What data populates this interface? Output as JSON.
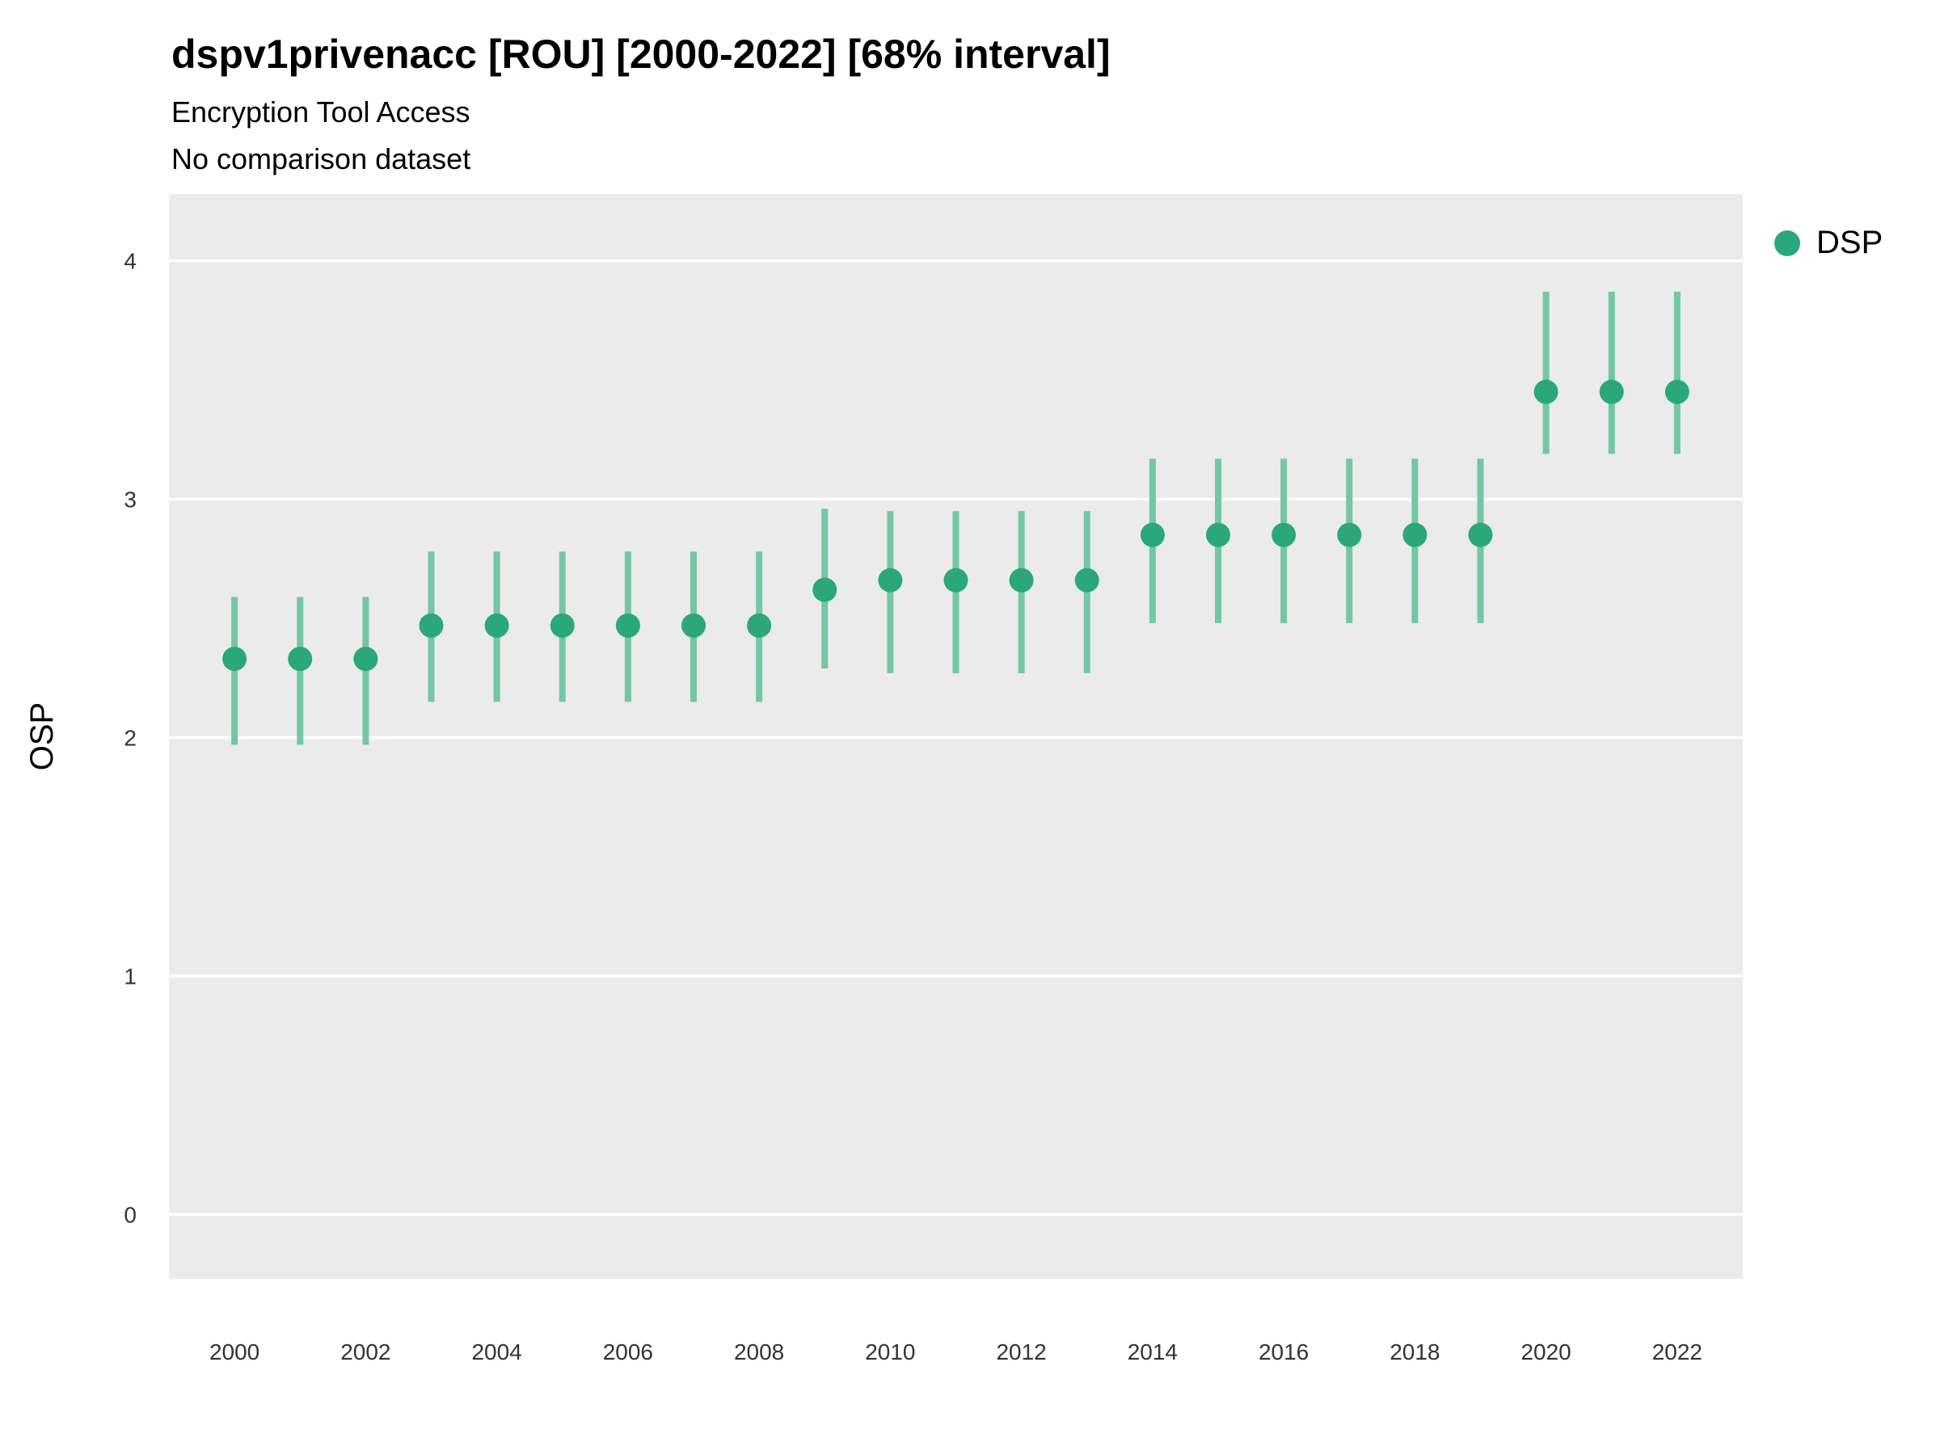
{
  "header": {
    "title": "dspv1privenacc [ROU] [2000-2022] [68% interval]",
    "subtitle": "Encryption Tool Access",
    "note": "No comparison dataset"
  },
  "legend": {
    "label": "DSP"
  },
  "axis": {
    "ylabel": "OSP"
  },
  "colors": {
    "point": "#2aa87b",
    "interval": "#74c6a4",
    "panel": "#ebebeb",
    "grid": "#ffffff",
    "tick": "#333333"
  },
  "chart_data": {
    "type": "scatter",
    "title": "dspv1privenacc [ROU] [2000-2022] [68% interval]",
    "subtitle": "Encryption Tool Access",
    "note": "No comparison dataset",
    "xlabel": "",
    "ylabel": "OSP",
    "legend_position": "right",
    "grid": "horizontal-major",
    "interval_label": "68% interval",
    "xlim": [
      1999,
      2023
    ],
    "ylim": [
      -0.27,
      4.28
    ],
    "xticks": [
      2000,
      2002,
      2004,
      2006,
      2008,
      2010,
      2012,
      2014,
      2016,
      2018,
      2020,
      2022
    ],
    "yticks": [
      0,
      1,
      2,
      3,
      4
    ],
    "series": [
      {
        "name": "DSP",
        "x": [
          2000,
          2001,
          2002,
          2003,
          2004,
          2005,
          2006,
          2007,
          2008,
          2009,
          2010,
          2011,
          2012,
          2013,
          2014,
          2015,
          2016,
          2017,
          2018,
          2019,
          2020,
          2021,
          2022
        ],
        "y": [
          2.33,
          2.33,
          2.33,
          2.47,
          2.47,
          2.47,
          2.47,
          2.47,
          2.47,
          2.62,
          2.66,
          2.66,
          2.66,
          2.66,
          2.85,
          2.85,
          2.85,
          2.85,
          2.85,
          2.85,
          3.45,
          3.45,
          3.45
        ],
        "lo": [
          1.97,
          1.97,
          1.97,
          2.15,
          2.15,
          2.15,
          2.15,
          2.15,
          2.15,
          2.29,
          2.27,
          2.27,
          2.27,
          2.27,
          2.48,
          2.48,
          2.48,
          2.48,
          2.48,
          2.48,
          3.19,
          3.19,
          3.19
        ],
        "hi": [
          2.59,
          2.59,
          2.59,
          2.78,
          2.78,
          2.78,
          2.78,
          2.78,
          2.78,
          2.96,
          2.95,
          2.95,
          2.95,
          2.95,
          3.17,
          3.17,
          3.17,
          3.17,
          3.17,
          3.17,
          3.87,
          3.87,
          3.87
        ]
      }
    ]
  }
}
